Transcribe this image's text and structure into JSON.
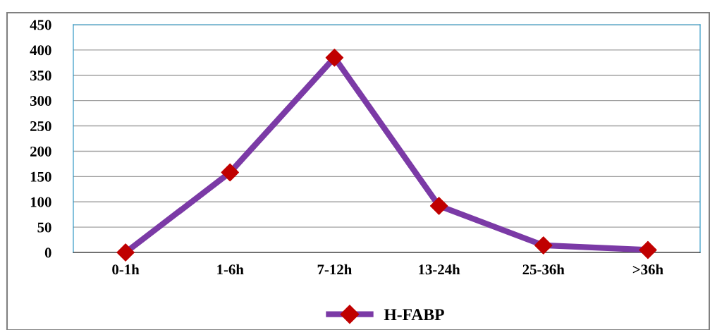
{
  "chart_data": {
    "type": "line",
    "categories": [
      "0-1h",
      "1-6h",
      "7-12h",
      "13-24h",
      "25-36h",
      ">36h"
    ],
    "series": [
      {
        "name": "H-FABP",
        "color": "#7b3aa6",
        "colors": [
          "#c00000",
          "#c00000",
          "#c00000",
          "#c00000",
          "#c00000",
          "#c00000"
        ],
        "values": [
          0,
          158,
          385,
          92,
          14,
          5
        ]
      }
    ],
    "ylim": [
      0,
      450
    ],
    "yticks": [
      0,
      50,
      100,
      150,
      200,
      250,
      300,
      350,
      400,
      450
    ],
    "grid": "y",
    "legend": "bottom",
    "marker": "diamond",
    "line_style": "solid"
  }
}
